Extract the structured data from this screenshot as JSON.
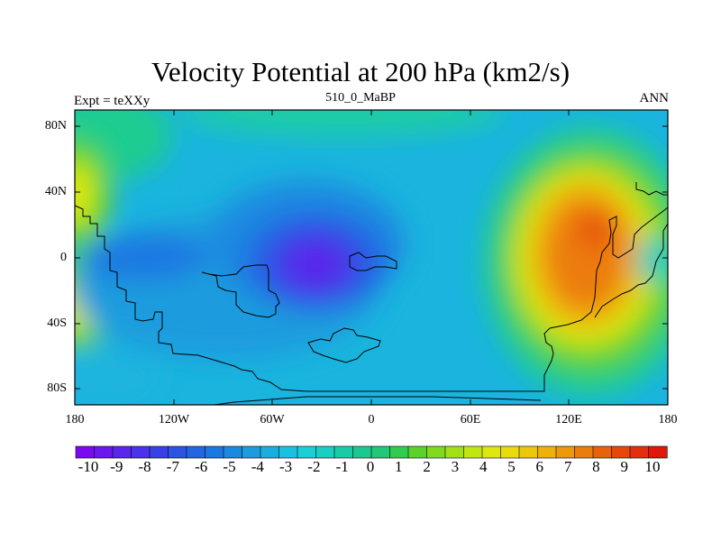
{
  "title": "Velocity Potential at 200 hPa (km2/s)",
  "left_string": "Expt = teXXy",
  "center_string": "510_0_MaBP",
  "right_string": "ANN",
  "y_ticks": [
    "80N",
    "40N",
    "0",
    "40S",
    "80S"
  ],
  "x_ticks": [
    "180",
    "120W",
    "60W",
    "0",
    "60E",
    "120E",
    "180"
  ],
  "colorbar": {
    "labels": [
      "-10",
      "-9",
      "-8",
      "-7",
      "-6",
      "-5",
      "-4",
      "-3",
      "-2",
      "-1",
      "0",
      "1",
      "2",
      "3",
      "4",
      "5",
      "6",
      "7",
      "8",
      "9",
      "10"
    ],
    "colors": [
      "#7a0bf0",
      "#6a18ee",
      "#5a25ec",
      "#4a32ea",
      "#3a40e8",
      "#2a54e6",
      "#2266e4",
      "#1a78e2",
      "#1a8ae0",
      "#1a9cde",
      "#1aaee0",
      "#1ac0e0",
      "#1ad0d6",
      "#1acec0",
      "#1acca6",
      "#1ac890",
      "#20c878",
      "#30cc50",
      "#5ad22a",
      "#80da20",
      "#a2e018",
      "#c2e614",
      "#dce810",
      "#e8dc0e",
      "#ecc80c",
      "#eeb00c",
      "#ee980c",
      "#ec7c0c",
      "#e8620c",
      "#e6480c",
      "#e2300c",
      "#e0180c"
    ]
  },
  "chart_data": {
    "type": "contour-map",
    "variable": "Velocity Potential at 200 hPa",
    "units": "km2/s",
    "experiment": "teXXy",
    "period": "510_0_MaBP",
    "season": "ANN",
    "lon_range": [
      -180,
      180
    ],
    "lat_range": [
      -90,
      90
    ],
    "levels": [
      -10,
      -9,
      -8,
      -7,
      -6,
      -5,
      -4,
      -3,
      -2,
      -1,
      0,
      1,
      2,
      3,
      4,
      5,
      6,
      7,
      8,
      9,
      10
    ],
    "features": [
      {
        "name": "minimum",
        "lon": -30,
        "lat": 0,
        "value": -9
      },
      {
        "name": "maximum",
        "lon": 135,
        "lat": 10,
        "value": 8.5
      },
      {
        "name": "secondary-minimum",
        "lon": -140,
        "lat": 0,
        "value": -5
      }
    ]
  }
}
